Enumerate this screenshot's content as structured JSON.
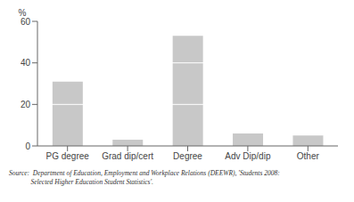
{
  "chart_data": {
    "type": "bar",
    "categories": [
      "PG degree",
      "Grad dip/cert",
      "Degree",
      "Adv Dip/dip",
      "Other"
    ],
    "values": [
      31,
      3,
      53,
      6,
      5
    ],
    "color": "#c8c8c8",
    "ylim": [
      0,
      60
    ],
    "yticks": [
      0,
      20,
      40,
      60
    ],
    "ylabel": "%",
    "annotations": [
      "Source:  Department of Education, Employment and Workplace Relations (DEEWR), 'Students 2008:",
      "             Selected Higher Education Student Statistics'."
    ]
  }
}
